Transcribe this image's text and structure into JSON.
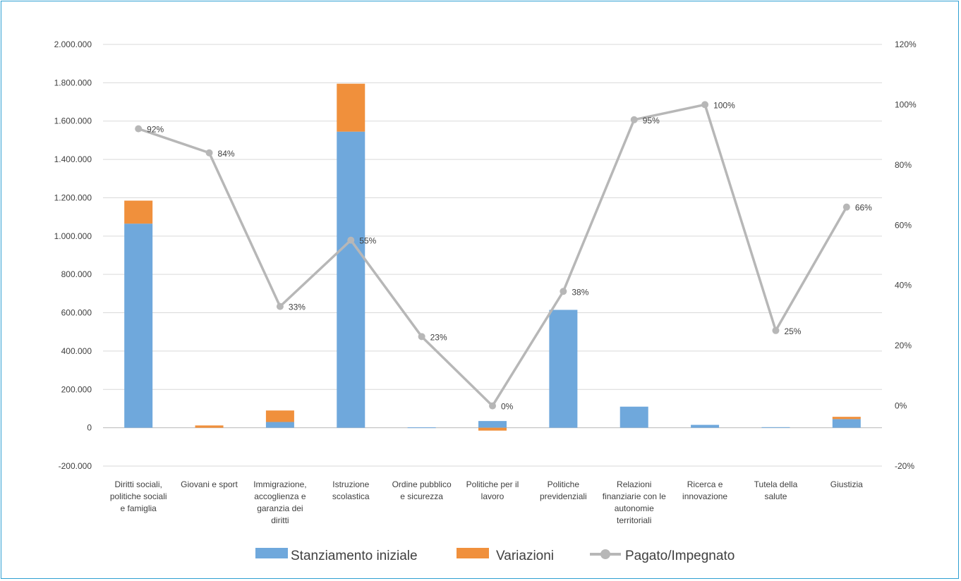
{
  "chart_data": {
    "type": "bar",
    "stacked": true,
    "title": "",
    "categories": [
      [
        "Diritti sociali,",
        "politiche sociali",
        "e famiglia"
      ],
      [
        "Giovani e sport"
      ],
      [
        "Immigrazione,",
        "accoglienza e",
        "garanzia dei",
        "diritti"
      ],
      [
        "Istruzione",
        "scolastica"
      ],
      [
        "Ordine pubblico",
        "e sicurezza"
      ],
      [
        "Politiche per il",
        "lavoro"
      ],
      [
        "Politiche",
        "previdenziali"
      ],
      [
        "Relazioni",
        "finanziarie con le",
        "autonomie",
        "territoriali"
      ],
      [
        "Ricerca e",
        "innovazione"
      ],
      [
        "Tutela della",
        "salute"
      ],
      [
        "Giustizia"
      ]
    ],
    "series": [
      {
        "name": "Stanziamento iniziale",
        "axis": "left",
        "kind": "bar",
        "color": "#6fa8dc",
        "values": [
          1065000,
          0,
          30000,
          1545000,
          2000,
          35000,
          615000,
          110000,
          15000,
          3000,
          45000
        ]
      },
      {
        "name": "Variazioni",
        "axis": "left",
        "kind": "bar",
        "color": "#f0903c",
        "values": [
          120000,
          12000,
          60000,
          250000,
          0,
          -15000,
          0,
          0,
          0,
          0,
          12000
        ]
      },
      {
        "name": "Pagato/Impegnato",
        "axis": "right",
        "kind": "line",
        "color": "#b7b7b7",
        "values": [
          0.92,
          0.84,
          0.33,
          0.55,
          0.23,
          0.0,
          0.38,
          0.95,
          1.0,
          0.25,
          0.66
        ],
        "labels": [
          "92%",
          "84%",
          "33%",
          "55%",
          "23%",
          "0%",
          "38%",
          "95%",
          "100%",
          "25%",
          "66%"
        ]
      }
    ],
    "left_axis": {
      "ylim": [
        -200000,
        2000000
      ],
      "ticks": [
        "2.000.000",
        "1.800.000",
        "1.600.000",
        "1.400.000",
        "1.200.000",
        "1.000.000",
        "800.000",
        "600.000",
        "400.000",
        "200.000",
        "0",
        "-200.000"
      ],
      "tick_values": [
        2000000,
        1800000,
        1600000,
        1400000,
        1200000,
        1000000,
        800000,
        600000,
        400000,
        200000,
        0,
        -200000
      ]
    },
    "right_axis": {
      "ylim": [
        -0.2,
        1.2
      ],
      "ticks": [
        "120%",
        "100%",
        "80%",
        "60%",
        "40%",
        "20%",
        "0%",
        "-20%"
      ],
      "tick_values": [
        1.2,
        1.0,
        0.8,
        0.6,
        0.4,
        0.2,
        0.0,
        -0.2
      ]
    },
    "grid": true,
    "legend_position": "bottom-center"
  }
}
